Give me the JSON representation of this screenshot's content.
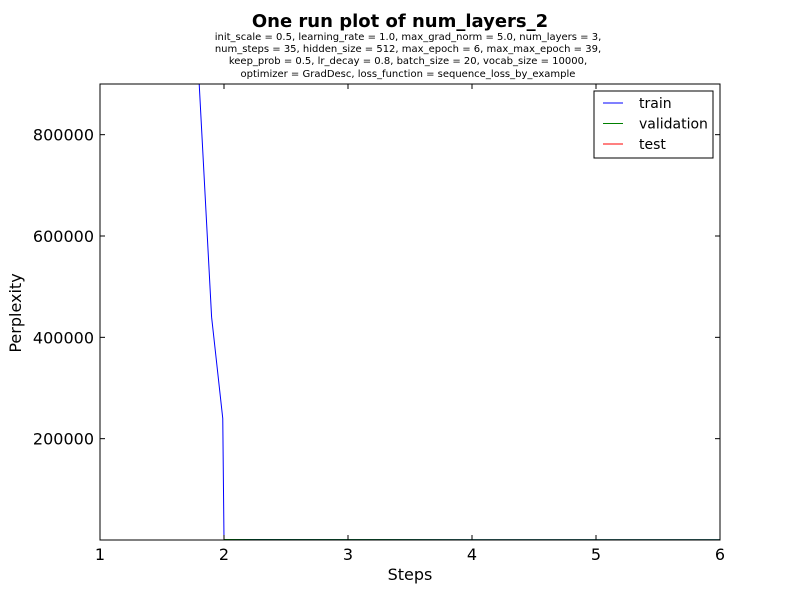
{
  "chart_data": {
    "type": "line",
    "title": "One run plot of num_layers_2",
    "subtitle_lines": [
      "init_scale = 0.5, learning_rate = 1.0, max_grad_norm = 5.0, num_layers = 3,",
      "num_steps = 35, hidden_size = 512, max_epoch = 6, max_max_epoch = 39,",
      "keep_prob = 0.5, lr_decay = 0.8, batch_size = 20, vocab_size = 10000,",
      "optimizer = GradDesc, loss_function = sequence_loss_by_example"
    ],
    "xlabel": "Steps",
    "ylabel": "Perplexity",
    "xlim": [
      1,
      6
    ],
    "ylim": [
      0,
      900000
    ],
    "x_ticks": [
      1,
      2,
      3,
      4,
      5,
      6
    ],
    "x_tick_labels": [
      "1",
      "2",
      "3",
      "4",
      "5",
      "6"
    ],
    "y_ticks": [
      200000,
      400000,
      600000,
      800000
    ],
    "y_tick_labels": [
      "200000",
      "400000",
      "600000",
      "800000"
    ],
    "grid": false,
    "legend_position": "top-right",
    "series": [
      {
        "name": "train",
        "color": "#0000ff",
        "x": [
          1.8,
          1.9,
          1.99,
          2.0,
          2.1,
          3,
          4,
          5,
          6
        ],
        "y": [
          900000,
          440000,
          240000,
          1000,
          900,
          700,
          600,
          500,
          450
        ]
      },
      {
        "name": "validation",
        "color": "#008000",
        "x": [
          2,
          3,
          4,
          5,
          6
        ],
        "y": [
          900,
          700,
          600,
          500,
          450
        ]
      },
      {
        "name": "test",
        "color": "#ff0000",
        "x": [
          6
        ],
        "y": [
          450
        ]
      }
    ]
  }
}
